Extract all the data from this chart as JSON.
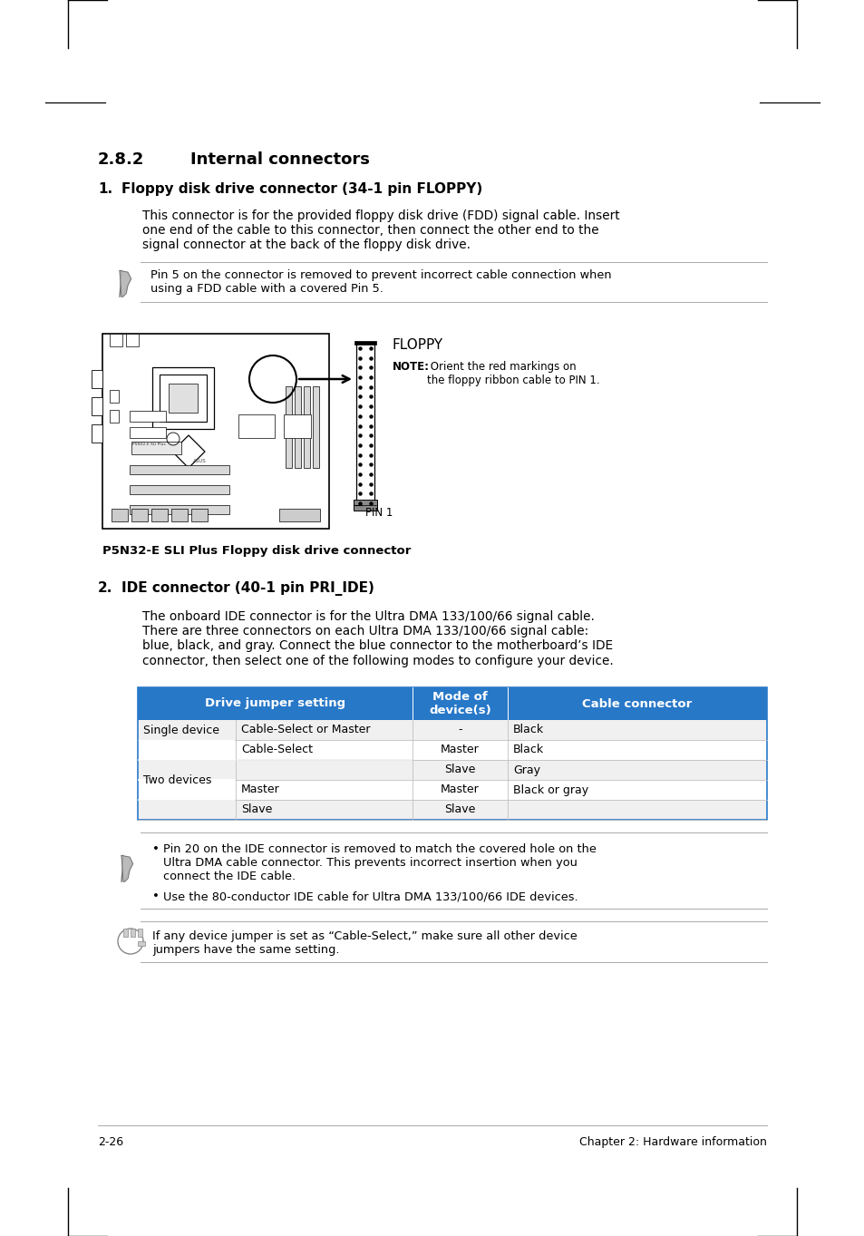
{
  "page_background": "#ffffff",
  "section_number": "2.8.2",
  "section_title": "Internal connectors",
  "item1_num": "1.",
  "item1_title": "Floppy disk drive connector (34-1 pin FLOPPY)",
  "item1_body": "This connector is for the provided floppy disk drive (FDD) signal cable. Insert\none end of the cable to this connector, then connect the other end to the\nsignal connector at the back of the floppy disk drive.",
  "note1_text": "Pin 5 on the connector is removed to prevent incorrect cable connection when\nusing a FDD cable with a covered Pin 5.",
  "floppy_label": "FLOPPY",
  "floppy_note_bold": "NOTE:",
  "floppy_note_rest": " Orient the red markings on\nthe floppy ribbon cable to PIN 1.",
  "pin1_label": "PIN 1",
  "fig1_caption": "P5N32-E SLI Plus Floppy disk drive connector",
  "item2_num": "2.",
  "item2_title": "IDE connector (40-1 pin PRI_IDE)",
  "item2_body": "The onboard IDE connector is for the Ultra DMA 133/100/66 signal cable.\nThere are three connectors on each Ultra DMA 133/100/66 signal cable:\nblue, black, and gray. Connect the blue connector to the motherboard’s IDE\nconnector, then select one of the following modes to configure your device.",
  "table_header_bg": "#2878c8",
  "table_border_color": "#2878c8",
  "table_header": [
    "Drive jumper setting",
    "Mode of\ndevice(s)",
    "Cable connector"
  ],
  "table_row_bg_alt": "#f0f0f0",
  "table_row_bg": "#ffffff",
  "table_col0_rows": [
    "Single device",
    "Two devices"
  ],
  "table_col1_rows": [
    "Cable-Select or Master",
    "Cable-Select",
    "",
    "Master",
    "Slave"
  ],
  "table_col2_rows": [
    "-",
    "Master",
    "Slave",
    "Master",
    "Slave"
  ],
  "table_col3_rows": [
    "Black",
    "Black",
    "Gray",
    "Black or gray",
    ""
  ],
  "note2_line1": "Pin 20 on the IDE connector is removed to match the covered hole on the",
  "note2_line2": "Ultra DMA cable connector. This prevents incorrect insertion when you",
  "note2_line3": "connect the IDE cable.",
  "note2_line4": "Use the 80-conductor IDE cable for Ultra DMA 133/100/66 IDE devices.",
  "note3_text": "If any device jumper is set as “Cable-Select,” make sure all other device\njumpers have the same setting.",
  "footer_left": "2-26",
  "footer_right": "Chapter 2: Hardware information"
}
